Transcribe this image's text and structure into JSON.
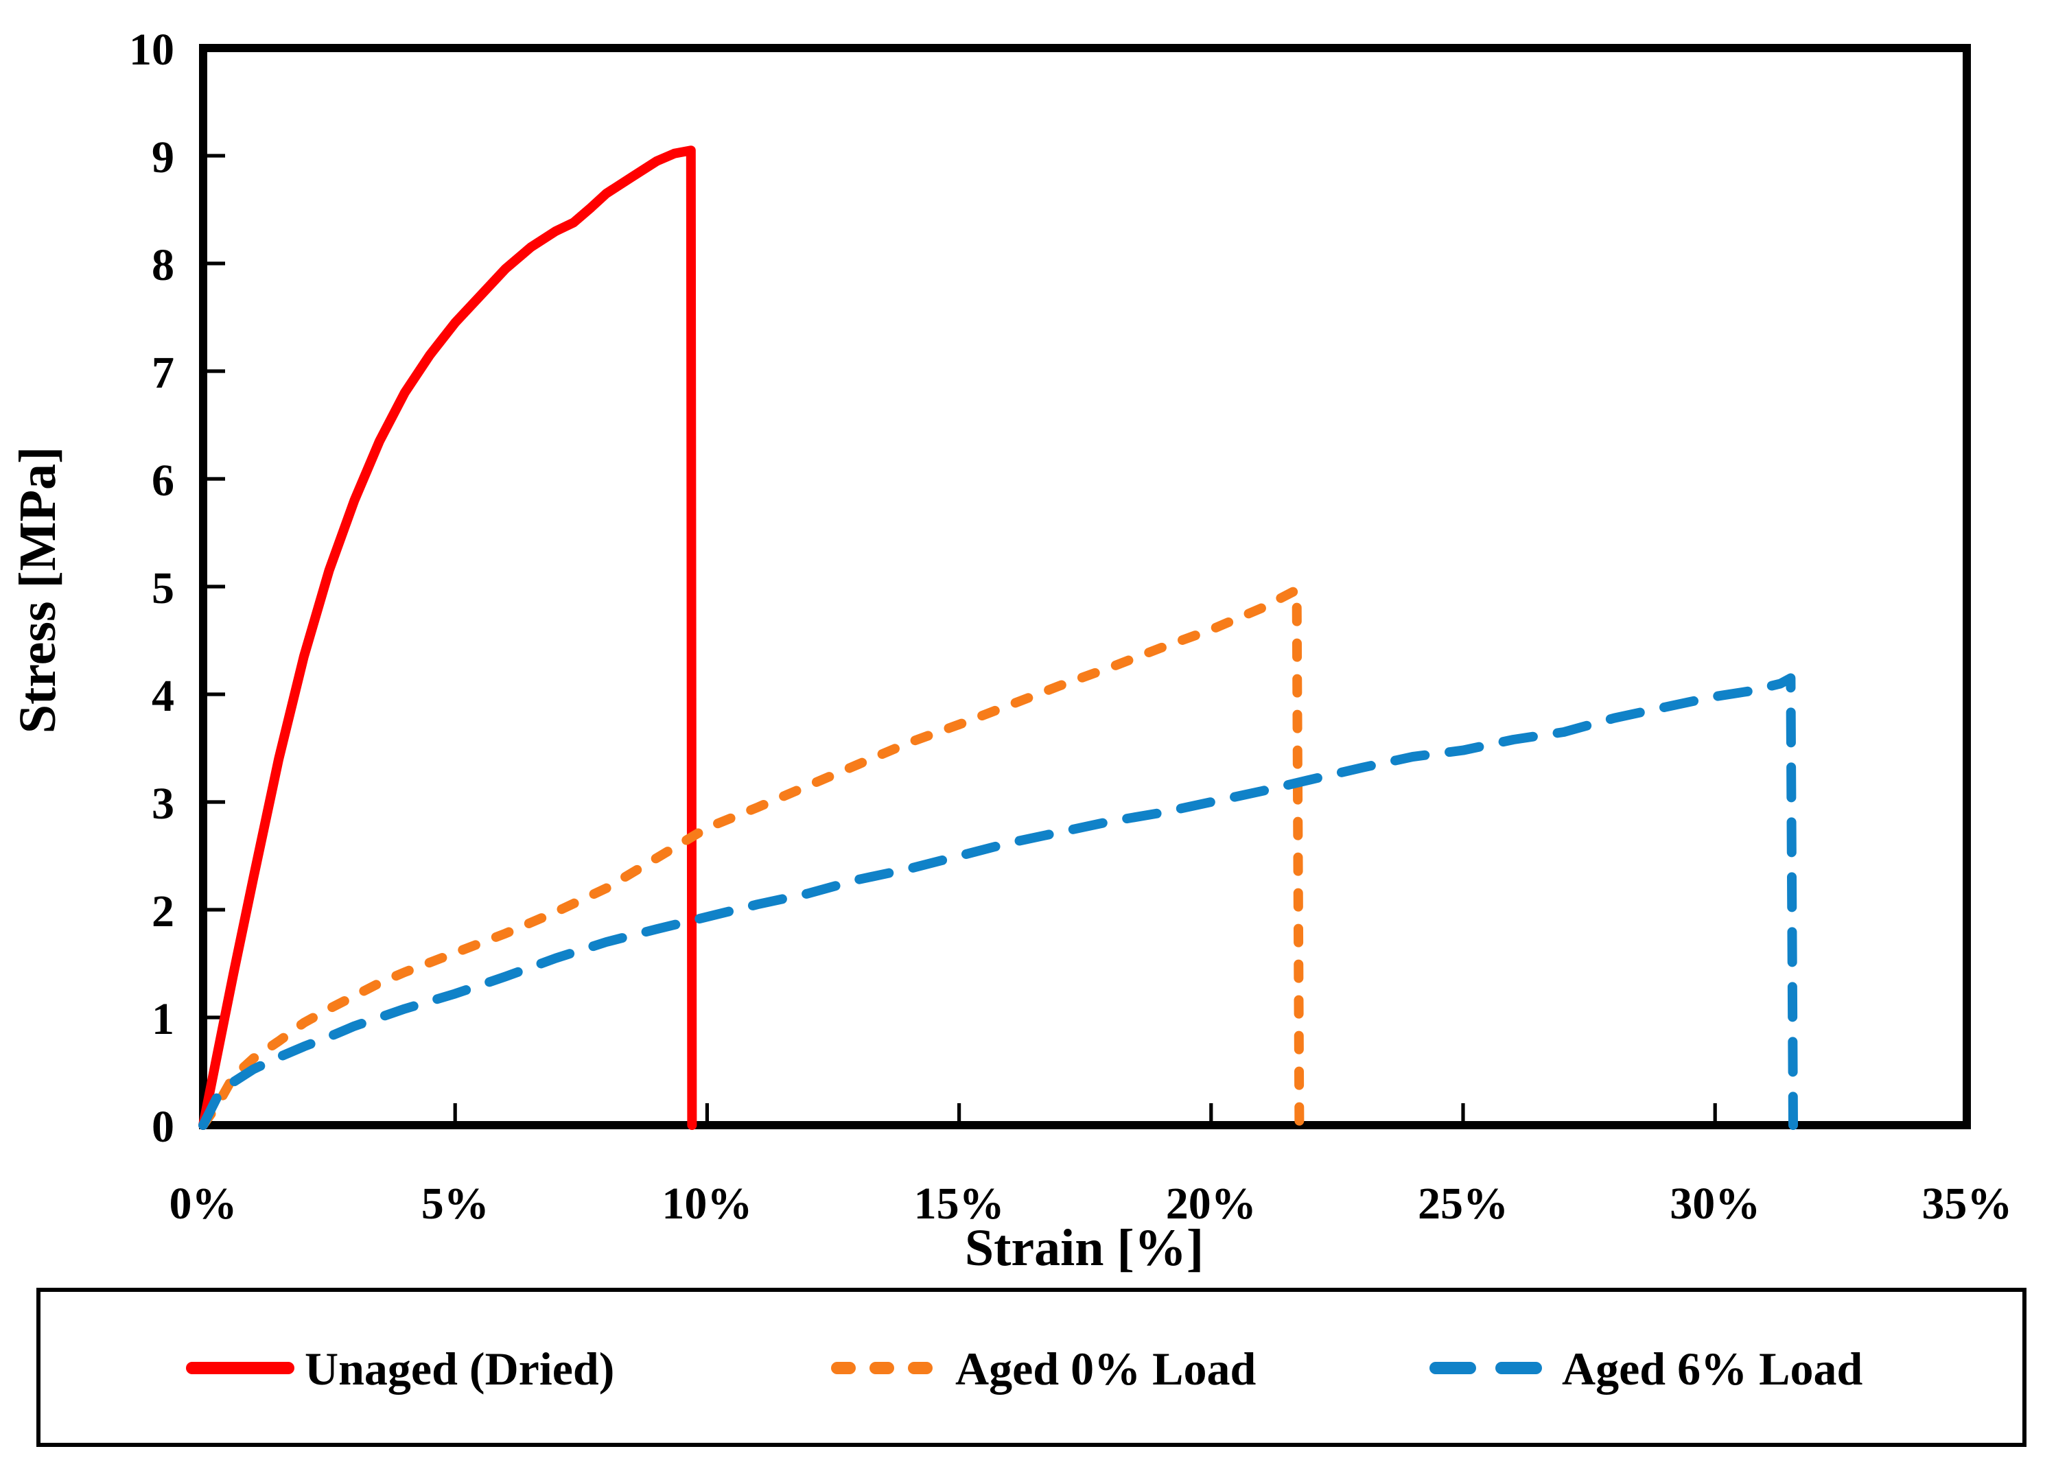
{
  "chart_data": {
    "type": "line",
    "xlabel": "Strain [%]",
    "ylabel": "Stress [MPa]",
    "xlim": [
      0,
      35
    ],
    "ylim": [
      0,
      10
    ],
    "grid": false,
    "legend_position": "bottom-box",
    "x_ticks": [
      {
        "value": 0,
        "label": "0%"
      },
      {
        "value": 5,
        "label": "5%"
      },
      {
        "value": 10,
        "label": "10%"
      },
      {
        "value": 15,
        "label": "15%"
      },
      {
        "value": 20,
        "label": "20%"
      },
      {
        "value": 25,
        "label": "25%"
      },
      {
        "value": 30,
        "label": "30%"
      },
      {
        "value": 35,
        "label": "35%"
      }
    ],
    "y_tick_values": [
      0,
      1,
      2,
      3,
      4,
      5,
      6,
      7,
      8,
      9,
      10
    ],
    "series": [
      {
        "name": "Unaged (Dried)",
        "color": "#FF0000",
        "line_style": "solid",
        "peak_stress_mpa": 9.05,
        "fracture_strain_pct": 9.7,
        "points": [
          [
            0,
            0
          ],
          [
            0.3,
            0.7
          ],
          [
            0.6,
            1.4
          ],
          [
            1.0,
            2.3
          ],
          [
            1.5,
            3.4
          ],
          [
            2.0,
            4.35
          ],
          [
            2.5,
            5.15
          ],
          [
            3.0,
            5.8
          ],
          [
            3.5,
            6.35
          ],
          [
            4.0,
            6.8
          ],
          [
            4.5,
            7.15
          ],
          [
            5.0,
            7.45
          ],
          [
            5.5,
            7.7
          ],
          [
            6.0,
            7.95
          ],
          [
            6.5,
            8.15
          ],
          [
            7.0,
            8.3
          ],
          [
            7.35,
            8.38
          ],
          [
            7.7,
            8.52
          ],
          [
            8.0,
            8.65
          ],
          [
            8.5,
            8.8
          ],
          [
            9.0,
            8.95
          ],
          [
            9.35,
            9.02
          ],
          [
            9.68,
            9.05
          ],
          [
            9.7,
            0
          ]
        ]
      },
      {
        "name": "Aged 0% Load",
        "color": "#F77C1A",
        "line_style": "dashed-short",
        "peak_stress_mpa": 5.0,
        "fracture_strain_pct": 21.7,
        "points": [
          [
            0,
            0
          ],
          [
            0.3,
            0.2
          ],
          [
            0.6,
            0.45
          ],
          [
            1.0,
            0.62
          ],
          [
            1.5,
            0.78
          ],
          [
            2.0,
            0.95
          ],
          [
            2.5,
            1.08
          ],
          [
            3.0,
            1.2
          ],
          [
            3.5,
            1.32
          ],
          [
            4.0,
            1.42
          ],
          [
            5.0,
            1.6
          ],
          [
            6.0,
            1.78
          ],
          [
            7.0,
            1.98
          ],
          [
            8.0,
            2.2
          ],
          [
            9.0,
            2.48
          ],
          [
            10.0,
            2.76
          ],
          [
            11,
            2.95
          ],
          [
            12,
            3.15
          ],
          [
            13,
            3.35
          ],
          [
            14,
            3.55
          ],
          [
            15,
            3.72
          ],
          [
            16,
            3.9
          ],
          [
            17,
            4.08
          ],
          [
            18,
            4.25
          ],
          [
            19,
            4.43
          ],
          [
            20,
            4.6
          ],
          [
            21,
            4.8
          ],
          [
            21.7,
            4.97
          ],
          [
            21.75,
            0
          ]
        ]
      },
      {
        "name": "Aged 6% Load",
        "color": "#1082C8",
        "line_style": "dashed-long",
        "peak_stress_mpa": 4.15,
        "fracture_strain_pct": 31.5,
        "points": [
          [
            0,
            0
          ],
          [
            0.3,
            0.28
          ],
          [
            0.6,
            0.4
          ],
          [
            1.0,
            0.52
          ],
          [
            1.5,
            0.63
          ],
          [
            2.0,
            0.73
          ],
          [
            2.5,
            0.82
          ],
          [
            3.0,
            0.92
          ],
          [
            4.0,
            1.08
          ],
          [
            5.0,
            1.22
          ],
          [
            6.0,
            1.38
          ],
          [
            7.0,
            1.55
          ],
          [
            8.0,
            1.7
          ],
          [
            9.0,
            1.82
          ],
          [
            9.7,
            1.9
          ],
          [
            11,
            2.05
          ],
          [
            12,
            2.15
          ],
          [
            13,
            2.28
          ],
          [
            14,
            2.38
          ],
          [
            15,
            2.5
          ],
          [
            16,
            2.62
          ],
          [
            17,
            2.72
          ],
          [
            18,
            2.82
          ],
          [
            19,
            2.9
          ],
          [
            20,
            3.0
          ],
          [
            21,
            3.1
          ],
          [
            21.9,
            3.2
          ],
          [
            23,
            3.32
          ],
          [
            24,
            3.42
          ],
          [
            25,
            3.48
          ],
          [
            26,
            3.58
          ],
          [
            27,
            3.65
          ],
          [
            28,
            3.78
          ],
          [
            29,
            3.88
          ],
          [
            30,
            3.98
          ],
          [
            30.7,
            4.03
          ],
          [
            31.3,
            4.1
          ],
          [
            31.5,
            4.15
          ],
          [
            31.55,
            0
          ]
        ]
      }
    ]
  }
}
